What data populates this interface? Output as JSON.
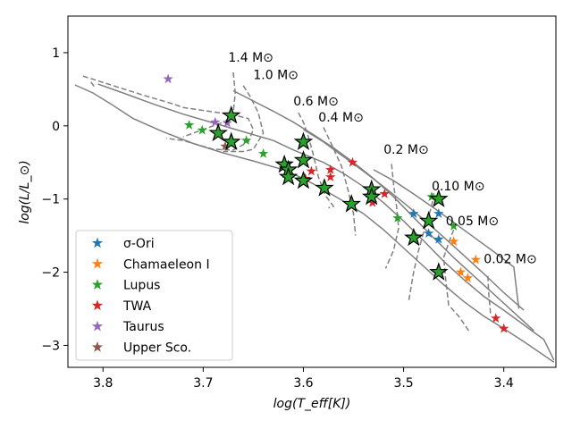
{
  "chart_data": {
    "type": "scatter",
    "xlabel": "log(T_eff[K])",
    "ylabel": "log(L/L_⊙)",
    "xlim": [
      3.835,
      3.348
    ],
    "ylim": [
      -3.3,
      1.5
    ],
    "x_ticks": [
      3.8,
      3.7,
      3.6,
      3.5,
      3.4
    ],
    "x_tick_labels": [
      "3.8",
      "3.7",
      "3.6",
      "3.5",
      "3.4"
    ],
    "y_ticks": [
      1,
      0,
      -1,
      -2,
      -3
    ],
    "y_tick_labels": [
      "1",
      "0",
      "−1",
      "−2",
      "−3"
    ],
    "legend_position": "lower-left",
    "series": [
      {
        "name": "σ-Ori",
        "color": "#1f77b4",
        "points": [
          [
            3.602,
            -0.22
          ],
          [
            3.49,
            -1.2
          ],
          [
            3.475,
            -1.47
          ],
          [
            3.465,
            -1.55
          ],
          [
            3.465,
            -1.2
          ]
        ]
      },
      {
        "name": "Chamaeleon I",
        "color": "#ff7f0e",
        "points": [
          [
            3.45,
            -1.58
          ],
          [
            3.443,
            -2.0
          ],
          [
            3.436,
            -2.08
          ],
          [
            3.428,
            -1.83
          ]
        ]
      },
      {
        "name": "Lupus",
        "color": "#2ca02c",
        "points": [
          [
            3.714,
            0.01
          ],
          [
            3.701,
            -0.06
          ],
          [
            3.657,
            -0.2
          ],
          [
            3.64,
            -0.38
          ],
          [
            3.506,
            -1.26
          ],
          [
            3.472,
            -0.97
          ],
          [
            3.45,
            -1.37
          ]
        ]
      },
      {
        "name": "TWA",
        "color": "#d62728",
        "points": [
          [
            3.598,
            -0.72
          ],
          [
            3.592,
            -0.62
          ],
          [
            3.573,
            -0.6
          ],
          [
            3.573,
            -0.7
          ],
          [
            3.551,
            -0.5
          ],
          [
            3.531,
            -1.05
          ],
          [
            3.519,
            -0.93
          ],
          [
            3.408,
            -2.63
          ],
          [
            3.4,
            -2.77
          ]
        ]
      },
      {
        "name": "Taurus",
        "color": "#9467bd",
        "points": [
          [
            3.735,
            0.64
          ],
          [
            3.688,
            0.05
          ],
          [
            3.676,
            0.04
          ]
        ]
      },
      {
        "name": "Upper Sco.",
        "color": "#8c564b",
        "points": [
          [
            3.678,
            -0.28
          ]
        ]
      }
    ],
    "highlighted_points": [
      [
        3.672,
        0.14
      ],
      [
        3.685,
        -0.1
      ],
      [
        3.672,
        -0.22
      ],
      [
        3.6,
        -0.22
      ],
      [
        3.619,
        -0.53
      ],
      [
        3.615,
        -0.6
      ],
      [
        3.6,
        -0.47
      ],
      [
        3.615,
        -0.7
      ],
      [
        3.6,
        -0.75
      ],
      [
        3.579,
        -0.85
      ],
      [
        3.552,
        -1.07
      ],
      [
        3.532,
        -0.87
      ],
      [
        3.532,
        -0.97
      ],
      [
        3.465,
        -1.0
      ],
      [
        3.475,
        -1.3
      ],
      [
        3.49,
        -1.53
      ],
      [
        3.465,
        -2.0
      ]
    ],
    "mass_labels": [
      "1.4 M⊙",
      "1.0 M⊙",
      "0.6 M⊙",
      "0.4 M⊙",
      "0.2 M⊙",
      "0.10 M⊙",
      "0.05 M⊙",
      "0.02 M⊙"
    ],
    "mass_label_anchors": [
      [
        3.675,
        0.88
      ],
      [
        3.65,
        0.64
      ],
      [
        3.61,
        0.28
      ],
      [
        3.585,
        0.06
      ],
      [
        3.52,
        -0.38
      ],
      [
        3.472,
        -0.88
      ],
      [
        3.458,
        -1.36
      ],
      [
        3.42,
        -1.88
      ]
    ],
    "isochrones": [
      [
        [
          3.828,
          0.56
        ],
        [
          3.81,
          0.45
        ],
        [
          3.79,
          0.28
        ],
        [
          3.77,
          0.1
        ],
        [
          3.74,
          -0.08
        ],
        [
          3.71,
          -0.24
        ],
        [
          3.68,
          -0.37
        ],
        [
          3.65,
          -0.48
        ],
        [
          3.62,
          -0.6
        ],
        [
          3.6,
          -0.72
        ],
        [
          3.58,
          -0.87
        ],
        [
          3.56,
          -1.03
        ],
        [
          3.54,
          -1.2
        ],
        [
          3.52,
          -1.42
        ],
        [
          3.5,
          -1.67
        ],
        [
          3.48,
          -1.92
        ],
        [
          3.46,
          -2.17
        ],
        [
          3.44,
          -2.4
        ],
        [
          3.42,
          -2.6
        ],
        [
          3.4,
          -2.77
        ],
        [
          3.38,
          -2.95
        ],
        [
          3.35,
          -3.23
        ]
      ],
      [
        [
          3.805,
          0.57
        ],
        [
          3.78,
          0.45
        ],
        [
          3.75,
          0.3
        ],
        [
          3.72,
          0.16
        ],
        [
          3.69,
          0.04
        ],
        [
          3.66,
          -0.08
        ],
        [
          3.63,
          -0.2
        ],
        [
          3.61,
          -0.33
        ],
        [
          3.58,
          -0.5
        ],
        [
          3.56,
          -0.65
        ],
        [
          3.54,
          -0.83
        ],
        [
          3.52,
          -1.05
        ],
        [
          3.5,
          -1.3
        ],
        [
          3.48,
          -1.57
        ],
        [
          3.46,
          -1.85
        ],
        [
          3.44,
          -2.1
        ],
        [
          3.42,
          -2.33
        ],
        [
          3.4,
          -2.52
        ],
        [
          3.38,
          -2.72
        ],
        [
          3.36,
          -2.92
        ],
        [
          3.35,
          -3.2
        ]
      ],
      [
        [
          3.67,
          0.48
        ],
        [
          3.65,
          0.34
        ],
        [
          3.63,
          0.2
        ],
        [
          3.61,
          0.05
        ],
        [
          3.59,
          -0.12
        ],
        [
          3.57,
          -0.3
        ],
        [
          3.55,
          -0.5
        ],
        [
          3.53,
          -0.72
        ],
        [
          3.51,
          -0.97
        ],
        [
          3.49,
          -1.25
        ],
        [
          3.47,
          -1.53
        ],
        [
          3.45,
          -1.8
        ],
        [
          3.43,
          -2.05
        ],
        [
          3.41,
          -2.3
        ],
        [
          3.39,
          -2.55
        ],
        [
          3.37,
          -2.8
        ]
      ],
      [
        [
          3.6,
          -0.05
        ],
        [
          3.58,
          -0.22
        ],
        [
          3.56,
          -0.42
        ],
        [
          3.54,
          -0.62
        ],
        [
          3.52,
          -0.83
        ],
        [
          3.5,
          -1.05
        ],
        [
          3.48,
          -1.28
        ],
        [
          3.46,
          -1.52
        ],
        [
          3.44,
          -1.77
        ],
        [
          3.42,
          -2.02
        ],
        [
          3.4,
          -2.28
        ],
        [
          3.38,
          -2.52
        ]
      ],
      [
        [
          3.53,
          -0.6
        ],
        [
          3.51,
          -0.75
        ],
        [
          3.49,
          -0.93
        ],
        [
          3.47,
          -1.12
        ],
        [
          3.45,
          -1.32
        ],
        [
          3.43,
          -1.52
        ],
        [
          3.41,
          -1.72
        ],
        [
          3.39,
          -1.93
        ],
        [
          3.385,
          -2.5
        ]
      ]
    ],
    "tracks": [
      [
        [
          3.82,
          0.68
        ],
        [
          3.79,
          0.55
        ],
        [
          3.76,
          0.42
        ],
        [
          3.73,
          0.3
        ],
        [
          3.72,
          0.25
        ],
        [
          3.695,
          0.2
        ],
        [
          3.67,
          0.15
        ],
        [
          3.655,
          0.1
        ],
        [
          3.65,
          -0.05
        ],
        [
          3.655,
          -0.22
        ],
        [
          3.67,
          -0.33
        ],
        [
          3.69,
          -0.32
        ],
        [
          3.72,
          -0.2
        ],
        [
          3.737,
          -0.17
        ]
      ],
      [
        [
          3.812,
          0.6
        ],
        [
          3.808,
          0.52
        ]
      ],
      [
        [
          3.67,
          0.73
        ],
        [
          3.668,
          0.45
        ],
        [
          3.67,
          0.18
        ],
        [
          3.678,
          0.06
        ],
        [
          3.7,
          -0.05
        ],
        [
          3.72,
          -0.15
        ]
      ],
      [
        [
          3.66,
          0.55
        ],
        [
          3.653,
          0.4
        ],
        [
          3.645,
          0.18
        ],
        [
          3.64,
          -0.1
        ],
        [
          3.65,
          -0.32
        ],
        [
          3.66,
          -0.35
        ],
        [
          3.68,
          -0.35
        ]
      ],
      [
        [
          3.605,
          0.18
        ],
        [
          3.6,
          0.05
        ],
        [
          3.595,
          -0.15
        ],
        [
          3.59,
          -0.4
        ],
        [
          3.585,
          -0.7
        ],
        [
          3.578,
          -0.95
        ],
        [
          3.57,
          -1.1
        ],
        [
          3.575,
          -1.12
        ]
      ],
      [
        [
          3.58,
          -0.02
        ],
        [
          3.572,
          -0.25
        ],
        [
          3.562,
          -0.55
        ],
        [
          3.555,
          -0.9
        ],
        [
          3.55,
          -1.2
        ],
        [
          3.548,
          -1.5
        ]
      ],
      [
        [
          3.512,
          -0.52
        ],
        [
          3.51,
          -0.8
        ],
        [
          3.507,
          -1.1
        ],
        [
          3.505,
          -1.4
        ],
        [
          3.51,
          -1.7
        ],
        [
          3.518,
          -1.95
        ]
      ],
      [
        [
          3.47,
          -0.92
        ],
        [
          3.472,
          -1.1
        ],
        [
          3.478,
          -1.35
        ],
        [
          3.485,
          -1.7
        ],
        [
          3.49,
          -2.0
        ],
        [
          3.495,
          -2.4
        ]
      ],
      [
        [
          3.45,
          -1.42
        ],
        [
          3.455,
          -1.6
        ],
        [
          3.46,
          -1.8
        ],
        [
          3.458,
          -2.1
        ],
        [
          3.455,
          -2.45
        ],
        [
          3.445,
          -2.6
        ],
        [
          3.435,
          -2.8
        ]
      ],
      [
        [
          3.416,
          -2.05
        ],
        [
          3.415,
          -2.3
        ],
        [
          3.413,
          -2.6
        ]
      ]
    ]
  }
}
